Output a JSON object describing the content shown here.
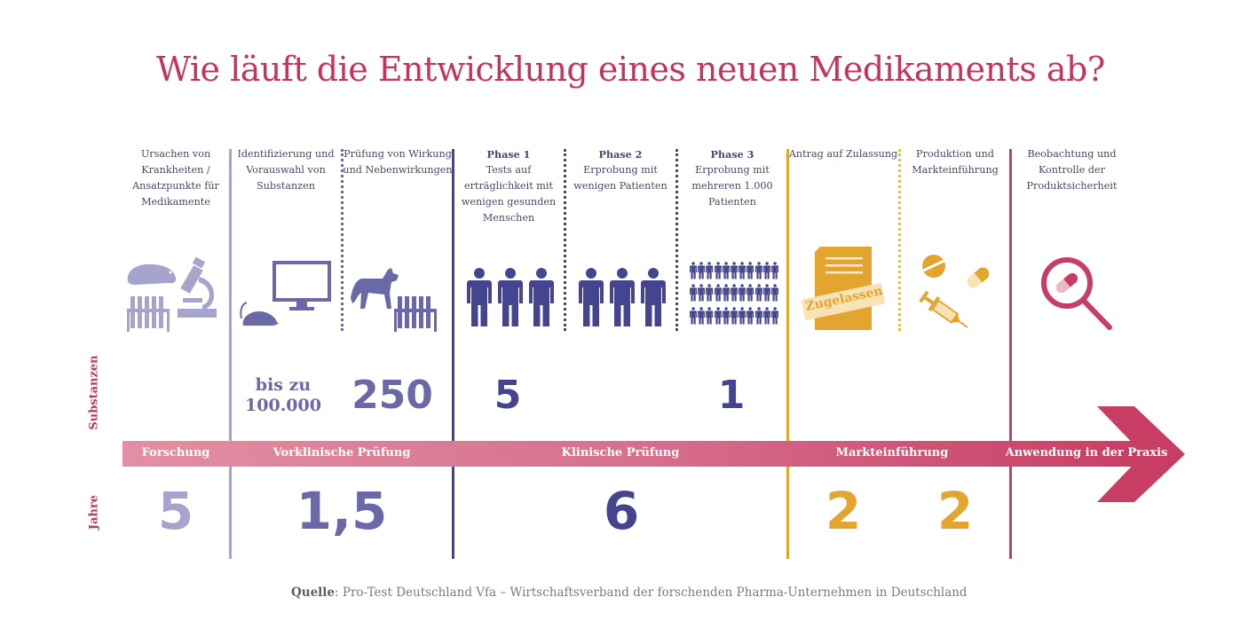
{
  "title": "Wie läuft die Entwicklung eines neuen Medikaments ab?",
  "colors": {
    "title": "#c4345f",
    "research": "#a6a3cc",
    "preclinical": "#6b68a8",
    "clinical": "#45458f",
    "market": "#e3a52e",
    "practice": "#c83d63"
  },
  "columns": [
    {
      "heading": "",
      "text": "Ursachen von Krankheiten / Ansatzpunkte für Medikamente",
      "icons": [
        "hamster-icon",
        "test-tubes-icon",
        "microscope-icon"
      ]
    },
    {
      "heading": "",
      "text": "Identifizierung und Vorauswahl von Substanzen",
      "icons": [
        "rat-icon",
        "computer-monitor-icon"
      ]
    },
    {
      "heading": "",
      "text": "Prüfung von Wirkung und Nebenwirkungen",
      "icons": [
        "dog-icon",
        "test-tubes-icon"
      ]
    },
    {
      "heading": "Phase 1",
      "text": "Tests auf erträglichkeit mit wenigen gesunden Menschen",
      "icons": [
        "person-icon",
        "person-icon",
        "person-icon"
      ]
    },
    {
      "heading": "Phase 2",
      "text": "Erprobung mit wenigen Patienten",
      "icons": [
        "person-icon",
        "person-icon",
        "person-icon"
      ]
    },
    {
      "heading": "Phase 3",
      "text": "Erprobung mit mehreren 1.000 Patienten",
      "icons": [
        "crowd-icon"
      ]
    },
    {
      "heading": "",
      "text": "Antrag auf Zulassung",
      "icons": [
        "approval-document-icon"
      ],
      "stamp": "Zugelassen"
    },
    {
      "heading": "",
      "text": "Produktion und Markteinführung",
      "icons": [
        "pill-icon",
        "capsule-icon",
        "syringe-icon"
      ]
    },
    {
      "heading": "",
      "text": "Beobachtung und Kontrolle der Produktsicherheit",
      "icons": [
        "magnifier-capsule-icon"
      ]
    }
  ],
  "row_labels": {
    "substances": "Substanzen",
    "years": "Jahre"
  },
  "substances": {
    "preclinical_prefix": "bis zu",
    "preclinical_value": "100.000",
    "preclinical_testing": "250",
    "phase1": "5",
    "phase3": "1"
  },
  "stages": [
    {
      "label": "Forschung",
      "years": "5"
    },
    {
      "label": "Vorklinische Prüfung",
      "years": "1,5"
    },
    {
      "label": "Klinische Prüfung",
      "years": "6"
    },
    {
      "label": "Markteinführung",
      "years_a": "2",
      "years_b": "2"
    },
    {
      "label": "Anwendung in der Praxis"
    }
  ],
  "source": {
    "label": "Quelle",
    "text": ": Pro-Test Deutschland Vfa – Wirtschaftsverband der forschenden Pharma-Unternehmen in Deutschland"
  }
}
